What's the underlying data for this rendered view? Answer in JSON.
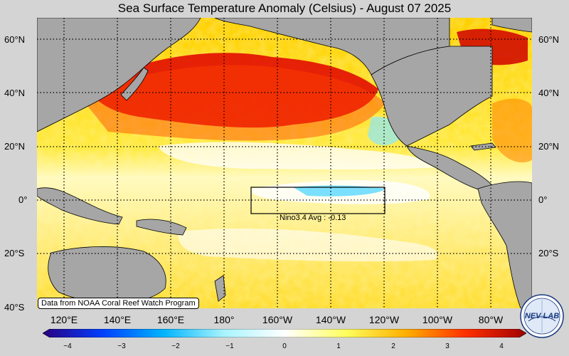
{
  "title": "Sea Surface Temperature Anomaly (Celsius) - August 07 2025",
  "lat_labels": [
    "60°N",
    "40°N",
    "20°N",
    "0°",
    "20°S",
    "40°S"
  ],
  "lon_labels": [
    "120°E",
    "140°E",
    "160°E",
    "180°",
    "160°W",
    "140°W",
    "120°W",
    "100°W",
    "80°W"
  ],
  "nino_label": "Nino3.4 Avg : -0.13",
  "credit": "Data from NOAA Coral Reef Watch Program",
  "colorbar": {
    "ticks": [
      "−4",
      "−3",
      "−2",
      "−1",
      "0",
      "1",
      "2",
      "3",
      "4"
    ],
    "colors": [
      "#2a0080",
      "#0040ff",
      "#00b4ff",
      "#a8f4ff",
      "#ffffff",
      "#ffff60",
      "#ffb000",
      "#ff3000",
      "#a00000"
    ]
  },
  "logo_text": "NEV LAB",
  "colors": {
    "land": "#a6a6a6",
    "frame": "#000000"
  }
}
